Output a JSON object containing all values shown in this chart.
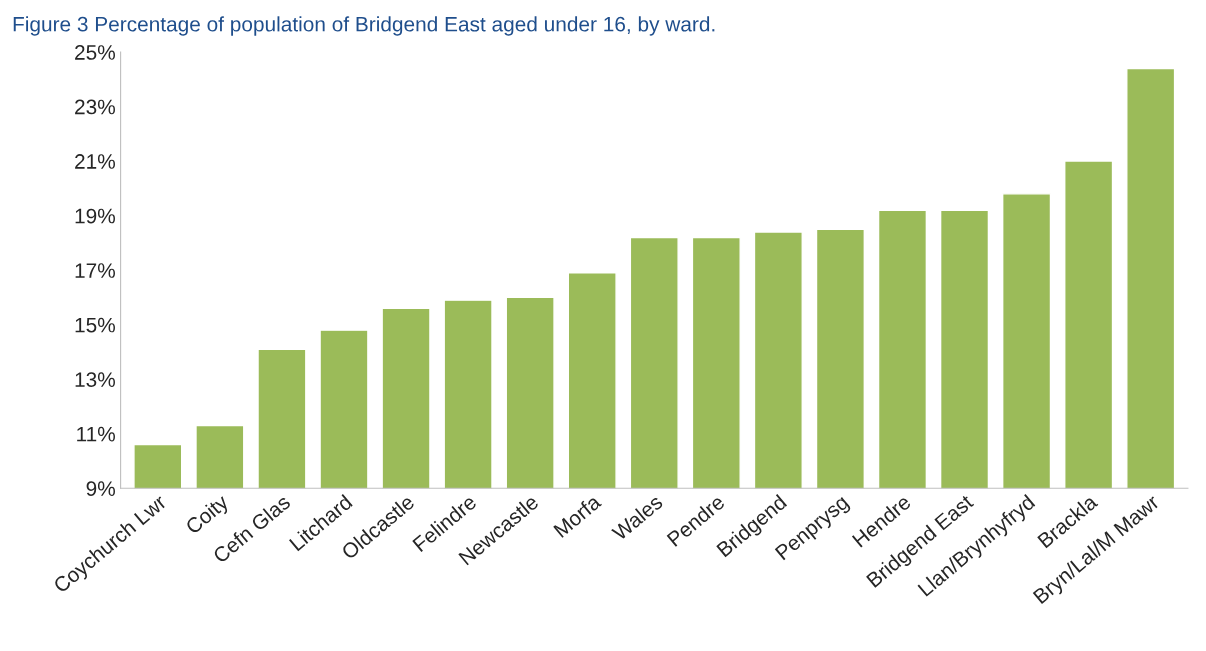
{
  "chart_data": {
    "type": "bar",
    "title": "Figure 3 Percentage of population of Bridgend East aged under 16, by ward.",
    "categories": [
      "Coychurch Lwr",
      "Coity",
      "Cefn Glas",
      "Litchard",
      "Oldcastle",
      "Felindre",
      "Newcastle",
      "Morfa",
      "Wales",
      "Pendre",
      "Bridgend",
      "Penprysg",
      "Hendre",
      "Bridgend East",
      "Llan/Brynhyfryd",
      "Brackla",
      "Bryn/Lal/M Mawr"
    ],
    "values": [
      10.6,
      11.3,
      14.1,
      14.8,
      15.6,
      15.9,
      16.0,
      16.9,
      18.2,
      18.2,
      18.4,
      18.5,
      19.2,
      19.2,
      19.8,
      21.0,
      24.4
    ],
    "color": "#9bbb59",
    "ylim": [
      9,
      25
    ],
    "yticks": [
      {
        "value": 9,
        "label": "9%"
      },
      {
        "value": 11,
        "label": "11%"
      },
      {
        "value": 13,
        "label": "13%"
      },
      {
        "value": 15,
        "label": "15%"
      },
      {
        "value": 17,
        "label": "17%"
      },
      {
        "value": 19,
        "label": "19%"
      },
      {
        "value": 21,
        "label": "21%"
      },
      {
        "value": 23,
        "label": "23%"
      },
      {
        "value": 25,
        "label": "25%"
      }
    ],
    "grid": false,
    "legend": false
  }
}
